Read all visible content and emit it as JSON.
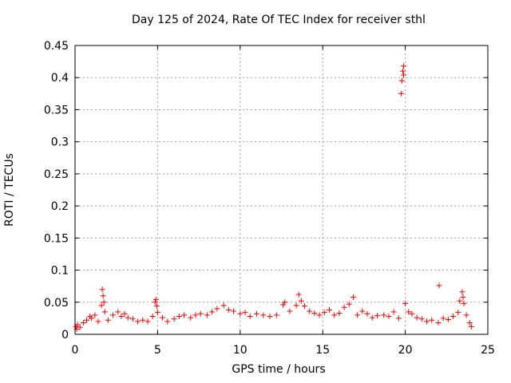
{
  "chart_data": {
    "type": "scatter",
    "title": "Day 125 of 2024, Rate Of TEC Index for receiver sthl",
    "xlabel": "GPS time / hours",
    "ylabel": "ROTI / TECUs",
    "xlim": [
      0,
      25
    ],
    "ylim": [
      0,
      0.45
    ],
    "x_ticks": [
      "0",
      "5",
      "10",
      "15",
      "20",
      "25"
    ],
    "y_ticks": [
      "0",
      "0.05",
      "0.1",
      "0.15",
      "0.2",
      "0.25",
      "0.3",
      "0.35",
      "0.4",
      "0.45"
    ],
    "grid": true,
    "marker": "+",
    "colors": {
      "points": "#ff0000",
      "grid": "#a0a0a0",
      "axes": "#000000"
    },
    "series": [
      {
        "name": "sthl",
        "points": [
          [
            0.05,
            0.012
          ],
          [
            0.1,
            0.008
          ],
          [
            0.15,
            0.015
          ],
          [
            0.3,
            0.011
          ],
          [
            0.5,
            0.018
          ],
          [
            0.7,
            0.022
          ],
          [
            0.9,
            0.028
          ],
          [
            1.0,
            0.025
          ],
          [
            1.2,
            0.03
          ],
          [
            1.4,
            0.02
          ],
          [
            1.6,
            0.045
          ],
          [
            1.65,
            0.07
          ],
          [
            1.7,
            0.06
          ],
          [
            1.75,
            0.05
          ],
          [
            1.8,
            0.035
          ],
          [
            2.0,
            0.022
          ],
          [
            2.3,
            0.03
          ],
          [
            2.6,
            0.035
          ],
          [
            2.8,
            0.028
          ],
          [
            3.0,
            0.032
          ],
          [
            3.2,
            0.026
          ],
          [
            3.5,
            0.024
          ],
          [
            3.8,
            0.02
          ],
          [
            4.1,
            0.022
          ],
          [
            4.4,
            0.02
          ],
          [
            4.7,
            0.028
          ],
          [
            4.85,
            0.05
          ],
          [
            4.9,
            0.054
          ],
          [
            4.95,
            0.044
          ],
          [
            5.0,
            0.034
          ],
          [
            5.3,
            0.026
          ],
          [
            5.6,
            0.02
          ],
          [
            6.0,
            0.024
          ],
          [
            6.3,
            0.028
          ],
          [
            6.6,
            0.03
          ],
          [
            7.0,
            0.026
          ],
          [
            7.3,
            0.03
          ],
          [
            7.6,
            0.032
          ],
          [
            8.0,
            0.03
          ],
          [
            8.3,
            0.035
          ],
          [
            8.6,
            0.04
          ],
          [
            9.0,
            0.045
          ],
          [
            9.3,
            0.038
          ],
          [
            9.6,
            0.036
          ],
          [
            10.0,
            0.032
          ],
          [
            10.3,
            0.034
          ],
          [
            10.6,
            0.028
          ],
          [
            11.0,
            0.032
          ],
          [
            11.4,
            0.03
          ],
          [
            11.8,
            0.028
          ],
          [
            12.2,
            0.03
          ],
          [
            12.6,
            0.046
          ],
          [
            12.7,
            0.05
          ],
          [
            13.0,
            0.036
          ],
          [
            13.4,
            0.045
          ],
          [
            13.55,
            0.062
          ],
          [
            13.7,
            0.052
          ],
          [
            13.9,
            0.044
          ],
          [
            14.2,
            0.036
          ],
          [
            14.5,
            0.033
          ],
          [
            14.8,
            0.03
          ],
          [
            15.1,
            0.034
          ],
          [
            15.4,
            0.038
          ],
          [
            15.7,
            0.03
          ],
          [
            16.0,
            0.033
          ],
          [
            16.3,
            0.042
          ],
          [
            16.6,
            0.047
          ],
          [
            16.85,
            0.058
          ],
          [
            17.1,
            0.03
          ],
          [
            17.4,
            0.036
          ],
          [
            17.7,
            0.032
          ],
          [
            18.0,
            0.026
          ],
          [
            18.3,
            0.029
          ],
          [
            18.7,
            0.03
          ],
          [
            19.0,
            0.028
          ],
          [
            19.3,
            0.035
          ],
          [
            19.6,
            0.025
          ],
          [
            19.75,
            0.375
          ],
          [
            19.8,
            0.395
          ],
          [
            19.85,
            0.41
          ],
          [
            19.9,
            0.418
          ],
          [
            19.9,
            0.404
          ],
          [
            20.0,
            0.048
          ],
          [
            20.2,
            0.035
          ],
          [
            20.4,
            0.032
          ],
          [
            20.7,
            0.026
          ],
          [
            21.0,
            0.024
          ],
          [
            21.3,
            0.02
          ],
          [
            21.6,
            0.022
          ],
          [
            22.0,
            0.018
          ],
          [
            22.05,
            0.076
          ],
          [
            22.3,
            0.025
          ],
          [
            22.6,
            0.023
          ],
          [
            22.9,
            0.028
          ],
          [
            23.2,
            0.034
          ],
          [
            23.3,
            0.052
          ],
          [
            23.45,
            0.066
          ],
          [
            23.5,
            0.058
          ],
          [
            23.55,
            0.048
          ],
          [
            23.7,
            0.03
          ],
          [
            23.9,
            0.018
          ],
          [
            24.0,
            0.012
          ]
        ]
      }
    ]
  }
}
